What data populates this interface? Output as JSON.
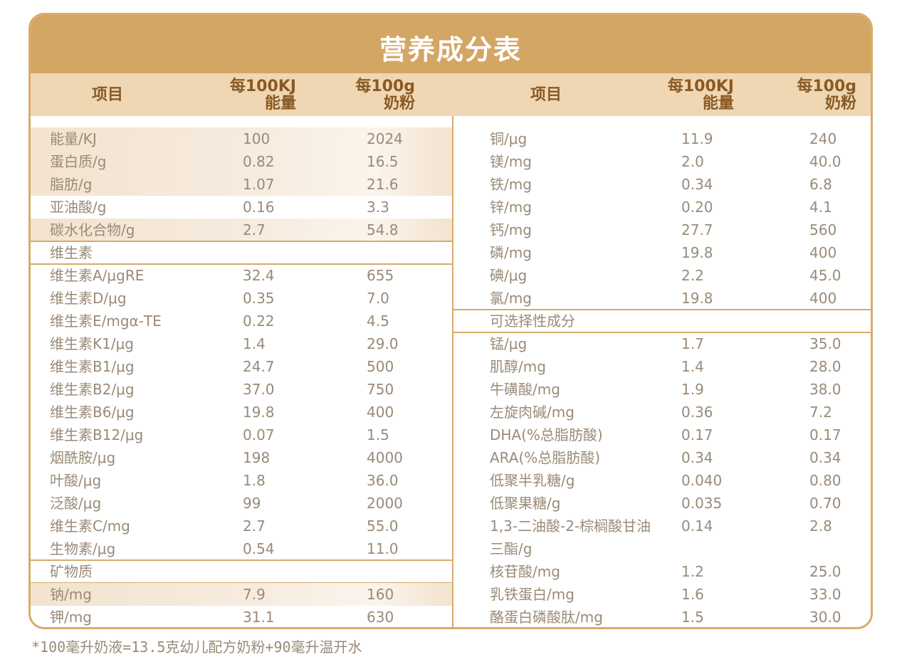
{
  "title": "营养成分表",
  "headers": {
    "item": "项目",
    "per_energy_line1": "每100KJ",
    "per_energy_line2": "能量",
    "per_powder_line1": "每100g",
    "per_powder_line2": "奶粉"
  },
  "left_rows": [
    {
      "name": "能量/KJ",
      "e": "100",
      "p": "2024",
      "hl": true
    },
    {
      "name": "蛋白质/g",
      "e": "0.82",
      "p": "16.5",
      "hl": true
    },
    {
      "name": "脂肪/g",
      "e": "1.07",
      "p": "21.6",
      "hl": true
    },
    {
      "name": "亚油酸/g",
      "e": "0.16",
      "p": "3.3",
      "hl": false
    },
    {
      "name": "碳水化合物/g",
      "e": "2.7",
      "p": "54.8",
      "hl": true
    },
    {
      "name": "维生素",
      "section": true
    },
    {
      "name": "维生素A/μgRE",
      "e": "32.4",
      "p": "655"
    },
    {
      "name": "维生素D/μg",
      "e": "0.35",
      "p": "7.0"
    },
    {
      "name": "维生素E/mgα-TE",
      "e": "0.22",
      "p": "4.5"
    },
    {
      "name": "维生素K1/μg",
      "e": "1.4",
      "p": "29.0"
    },
    {
      "name": "维生素B1/μg",
      "e": "24.7",
      "p": "500"
    },
    {
      "name": "维生素B2/μg",
      "e": "37.0",
      "p": "750"
    },
    {
      "name": "维生素B6/μg",
      "e": "19.8",
      "p": "400"
    },
    {
      "name": "维生素B12/μg",
      "e": "0.07",
      "p": "1.5"
    },
    {
      "name": "烟酰胺/μg",
      "e": "198",
      "p": "4000"
    },
    {
      "name": "叶酸/μg",
      "e": "1.8",
      "p": "36.0"
    },
    {
      "name": "泛酸/μg",
      "e": "99",
      "p": "2000"
    },
    {
      "name": "维生素C/mg",
      "e": "2.7",
      "p": "55.0"
    },
    {
      "name": "生物素/μg",
      "e": "0.54",
      "p": "11.0"
    },
    {
      "name": "矿物质",
      "section": true
    },
    {
      "name": "钠/mg",
      "e": "7.9",
      "p": "160",
      "hl": true
    },
    {
      "name": "钾/mg",
      "e": "31.1",
      "p": "630"
    }
  ],
  "right_rows": [
    {
      "name": "铜/μg",
      "e": "11.9",
      "p": "240"
    },
    {
      "name": "镁/mg",
      "e": "2.0",
      "p": "40.0"
    },
    {
      "name": "铁/mg",
      "e": "0.34",
      "p": "6.8"
    },
    {
      "name": "锌/mg",
      "e": "0.20",
      "p": "4.1"
    },
    {
      "name": "钙/mg",
      "e": "27.7",
      "p": "560"
    },
    {
      "name": "磷/mg",
      "e": "19.8",
      "p": "400"
    },
    {
      "name": "碘/μg",
      "e": "2.2",
      "p": "45.0"
    },
    {
      "name": "氯/mg",
      "e": "19.8",
      "p": "400"
    },
    {
      "name": "可选择性成分",
      "section": true
    },
    {
      "name": "锰/μg",
      "e": "1.7",
      "p": "35.0"
    },
    {
      "name": "肌醇/mg",
      "e": "1.4",
      "p": "28.0"
    },
    {
      "name": "牛磺酸/mg",
      "e": "1.9",
      "p": "38.0"
    },
    {
      "name": "左旋肉碱/mg",
      "e": "0.36",
      "p": "7.2"
    },
    {
      "name": "DHA(%总脂肪酸)",
      "e": "0.17",
      "p": "0.17"
    },
    {
      "name": "ARA(%总脂肪酸)",
      "e": "0.34",
      "p": "0.34"
    },
    {
      "name": "低聚半乳糖/g",
      "e": "0.040",
      "p": "0.80"
    },
    {
      "name": "低聚果糖/g",
      "e": "0.035",
      "p": "0.70"
    },
    {
      "name": "1,3-二油酸-2-棕榈酸甘油",
      "e": "0.14",
      "p": "2.8"
    },
    {
      "name": "三酯/g",
      "e": "",
      "p": ""
    },
    {
      "name": "核苷酸/mg",
      "e": "1.2",
      "p": "25.0"
    },
    {
      "name": "乳铁蛋白/mg",
      "e": "1.6",
      "p": "33.0"
    },
    {
      "name": "酪蛋白磷酸肽/mg",
      "e": "1.5",
      "p": "30.0"
    }
  ],
  "footnote": "*100毫升奶液=13.5克幼儿配方奶粉+90毫升温开水"
}
